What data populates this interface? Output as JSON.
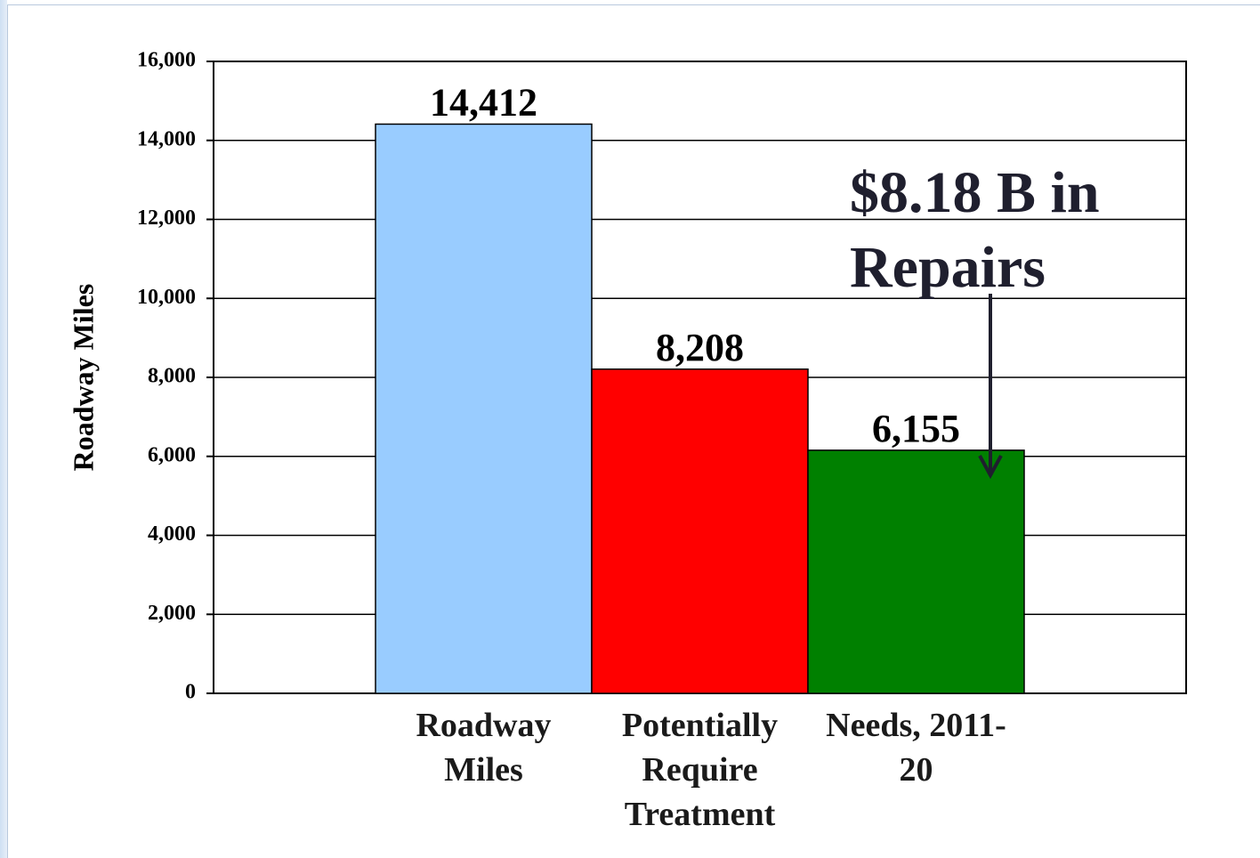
{
  "chart_data": {
    "type": "bar",
    "y_axis_label": "Roadway Miles",
    "categories": [
      "Roadway Miles",
      "Potentially Require Treatment",
      "Needs, 2011-20"
    ],
    "values": [
      14412,
      8208,
      6155
    ],
    "value_labels": [
      "14,412",
      "8,208",
      "6,155"
    ],
    "colors": [
      "#99ccff",
      "#ff0000",
      "#008000"
    ],
    "annotation": "$8.18 B in Repairs",
    "ylim": [
      0,
      16000
    ],
    "yticks": [
      0,
      {
        "value": 2000,
        "label": "2,000"
      },
      {
        "value": 4000,
        "label": "4,000"
      },
      {
        "value": 6000,
        "label": "6,000"
      },
      {
        "value": 8000,
        "label": "8,000"
      },
      {
        "value": 10000,
        "label": "10,000"
      },
      {
        "value": 12000,
        "label": "12,000"
      },
      {
        "value": 14000,
        "label": "14,000"
      },
      {
        "value": 16000,
        "label": "16,000"
      }
    ],
    "grid": true
  }
}
